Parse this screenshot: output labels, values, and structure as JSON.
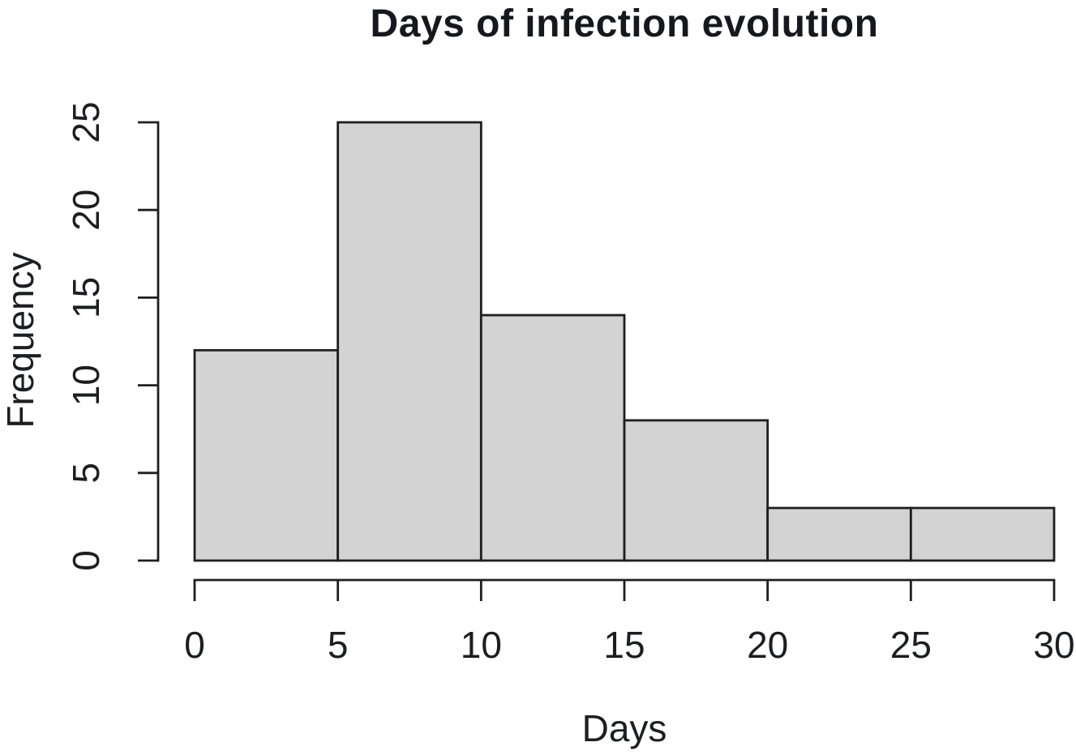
{
  "chart_data": {
    "type": "bar",
    "subtype": "histogram",
    "title": "Days of infection evolution",
    "xlabel": "Days",
    "ylabel": "Frequency",
    "bin_edges": [
      0,
      5,
      10,
      15,
      20,
      25,
      30
    ],
    "values": [
      12,
      25,
      14,
      8,
      3,
      3
    ],
    "x_ticks": [
      0,
      5,
      10,
      15,
      20,
      25,
      30
    ],
    "y_ticks": [
      0,
      5,
      10,
      15,
      20,
      25
    ],
    "xlim": [
      0,
      30
    ],
    "ylim": [
      0,
      25
    ],
    "grid": false,
    "legend": "none",
    "bar_fill": "#d3d3d3",
    "bar_stroke": "#1f1f1f",
    "axis_color": "#1f1f1f",
    "text_color": "#1c1e22",
    "background": "#ffffff"
  }
}
